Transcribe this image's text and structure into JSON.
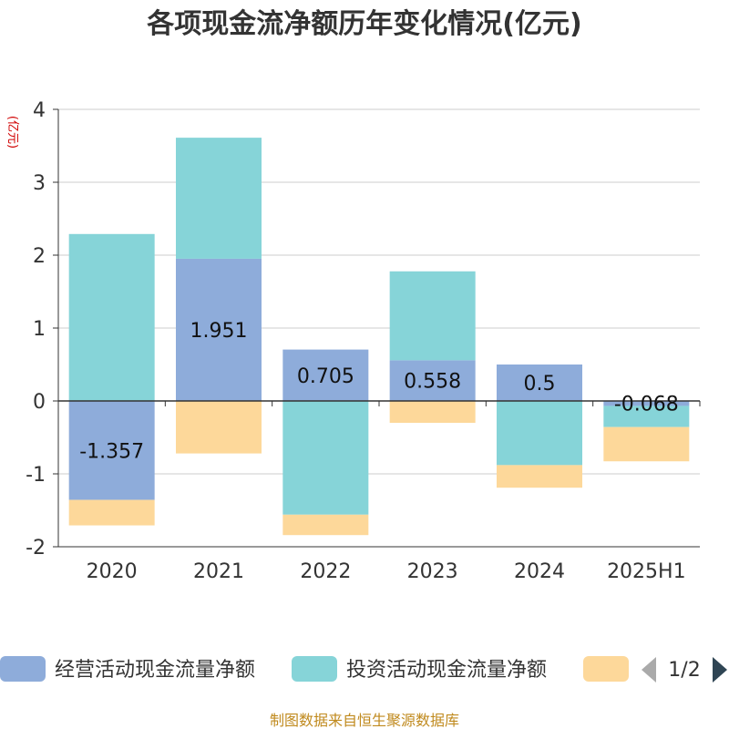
{
  "chart_data": {
    "type": "bar",
    "stacked": true,
    "title": "各项现金流净额历年变化情况(亿元)",
    "unit_label": "(亿元)",
    "categories": [
      "2020",
      "2021",
      "2022",
      "2023",
      "2024",
      "2025H1"
    ],
    "ylim": [
      -2,
      4
    ],
    "yticks": [
      -2,
      -1,
      0,
      1,
      2,
      3,
      4
    ],
    "grid": true,
    "legend_position": "bottom",
    "series": [
      {
        "name": "经营活动现金流量净额",
        "color": "#8eacda",
        "values": [
          -1.357,
          1.951,
          0.705,
          0.558,
          0.5,
          -0.068
        ],
        "labels": [
          "-1.357",
          "1.951",
          "0.705",
          "0.558",
          "0.5",
          "-0.068"
        ]
      },
      {
        "name": "投资活动现金流量净额",
        "color": "#86d4d8",
        "values": [
          2.29,
          1.66,
          -1.56,
          1.22,
          -0.88,
          -0.29
        ]
      },
      {
        "name": "",
        "color": "#fdd89a",
        "values": [
          -0.35,
          -0.72,
          -0.28,
          -0.3,
          -0.31,
          -0.47
        ]
      }
    ]
  },
  "legend": {
    "page_indicator": "1/2"
  },
  "source": "制图数据来自恒生聚源数据库"
}
